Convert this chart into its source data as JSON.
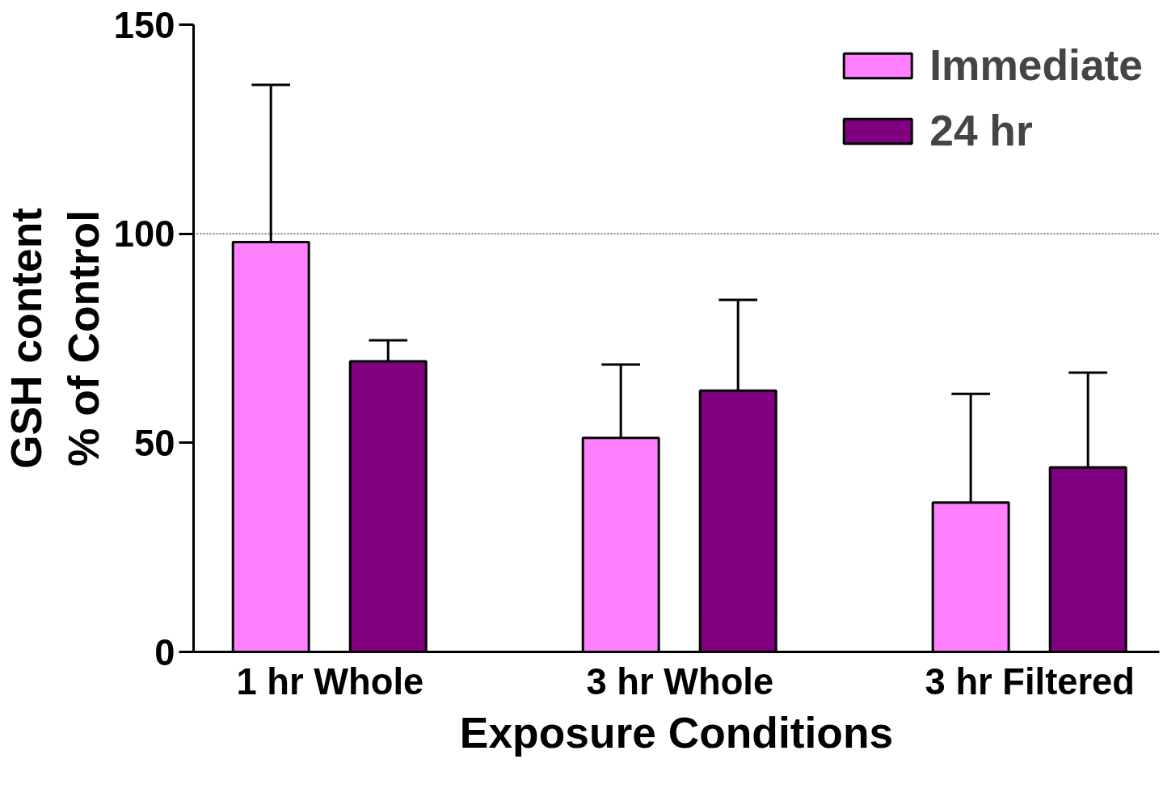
{
  "chart_data": {
    "type": "bar",
    "xlabel": "Exposure Conditions",
    "ylabel": "GSH content\n% of Control",
    "categories": [
      "1 hr Whole",
      "3 hr Whole",
      "3 hr Filtered"
    ],
    "series": [
      {
        "name": "Immediate",
        "color": "#ff80ff",
        "values": [
          98.0,
          51.2,
          35.7
        ],
        "errors": [
          [
            98.0,
            135.6
          ],
          [
            51.2,
            68.7
          ],
          [
            35.7,
            61.7
          ]
        ]
      },
      {
        "name": "24 hr",
        "color": "#800080",
        "values": [
          69.5,
          62.5,
          44.1
        ],
        "errors": [
          [
            69.5,
            74.5
          ],
          [
            62.5,
            84.2
          ],
          [
            44.1,
            66.8
          ]
        ]
      }
    ],
    "ylim": [
      0,
      150
    ],
    "yticks": [
      0,
      50,
      100,
      150
    ],
    "legend": "top right",
    "ref_lines": [
      {
        "axis": "y",
        "value": 100,
        "color": "#000000",
        "line_style": "dotted"
      }
    ]
  }
}
